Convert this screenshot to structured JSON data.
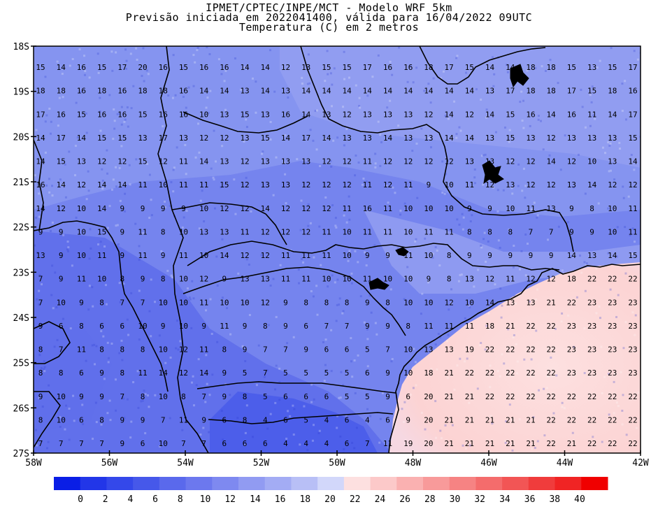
{
  "title": {
    "line1": "IPMET/CPTEC/INPE/MCT - Modelo WRF 5km",
    "line2": "Previsão iniciada em 2022041400, válida para 16/04/2022 09UTC",
    "line3": "Temperatura (C) em 2 metros"
  },
  "axes": {
    "lat_ticks": [
      "18S",
      "19S",
      "20S",
      "21S",
      "22S",
      "23S",
      "24S",
      "25S",
      "26S",
      "27S"
    ],
    "lon_ticks": [
      "58W",
      "56W",
      "54W",
      "52W",
      "50W",
      "48W",
      "46W",
      "44W",
      "42W"
    ]
  },
  "colorbar": {
    "labels": [
      "0",
      "2",
      "4",
      "6",
      "8",
      "10",
      "12",
      "14",
      "16",
      "18",
      "20",
      "22",
      "24",
      "26",
      "28",
      "30",
      "32",
      "34",
      "36",
      "38",
      "40"
    ],
    "colors": [
      "#0a1ee6",
      "#2236e8",
      "#3448ea",
      "#4658ea",
      "#5a69ec",
      "#6c78ee",
      "#7e89f0",
      "#919bf2",
      "#a3acf4",
      "#b8bff6",
      "#d2d7fa",
      "#fde0e0",
      "#fcc9c9",
      "#fab1b1",
      "#f89a9a",
      "#f68383",
      "#f46c6c",
      "#f25555",
      "#f03c3c",
      "#f02424",
      "#f00000"
    ]
  },
  "grid_values": [
    [
      "15",
      "14",
      "16",
      "15",
      "17",
      "20",
      "16",
      "15",
      "16",
      "16",
      "14",
      "14",
      "12",
      "13",
      "15",
      "15",
      "17",
      "16",
      "16",
      "18",
      "17",
      "15",
      "14",
      "14",
      "18",
      "18",
      "15",
      "13",
      "15",
      "17"
    ],
    [
      "18",
      "18",
      "16",
      "18",
      "16",
      "18",
      "18",
      "16",
      "14",
      "14",
      "13",
      "14",
      "13",
      "14",
      "14",
      "14",
      "14",
      "14",
      "14",
      "14",
      "14",
      "14",
      "13",
      "17",
      "18",
      "18",
      "17",
      "15",
      "18",
      "16"
    ],
    [
      "17",
      "16",
      "15",
      "16",
      "16",
      "15",
      "16",
      "16",
      "10",
      "13",
      "15",
      "13",
      "16",
      "14",
      "13",
      "12",
      "13",
      "13",
      "13",
      "12",
      "14",
      "12",
      "14",
      "15",
      "16",
      "14",
      "16",
      "11",
      "14",
      "17"
    ],
    [
      "14",
      "17",
      "14",
      "15",
      "15",
      "13",
      "17",
      "13",
      "12",
      "12",
      "13",
      "15",
      "14",
      "17",
      "14",
      "13",
      "13",
      "14",
      "13",
      "13",
      "14",
      "14",
      "13",
      "15",
      "13",
      "12",
      "13",
      "13",
      "13",
      "15"
    ],
    [
      "14",
      "15",
      "13",
      "12",
      "12",
      "15",
      "12",
      "11",
      "14",
      "13",
      "12",
      "13",
      "13",
      "13",
      "12",
      "12",
      "11",
      "12",
      "12",
      "12",
      "12",
      "13",
      "13",
      "12",
      "12",
      "14",
      "12",
      "10",
      "13",
      "14"
    ],
    [
      "16",
      "14",
      "12",
      "14",
      "14",
      "11",
      "10",
      "11",
      "11",
      "15",
      "12",
      "13",
      "13",
      "12",
      "12",
      "12",
      "11",
      "12",
      "11",
      "9",
      "10",
      "11",
      "12",
      "13",
      "12",
      "12",
      "13",
      "14",
      "12",
      "12"
    ],
    [
      "14",
      "12",
      "10",
      "14",
      "9",
      "9",
      "9",
      "9",
      "10",
      "12",
      "12",
      "14",
      "12",
      "12",
      "12",
      "11",
      "16",
      "11",
      "10",
      "10",
      "10",
      "9",
      "9",
      "10",
      "11",
      "13",
      "9",
      "8",
      "10",
      "11"
    ],
    [
      "9",
      "9",
      "10",
      "15",
      "9",
      "11",
      "8",
      "10",
      "13",
      "13",
      "11",
      "12",
      "12",
      "12",
      "11",
      "10",
      "11",
      "11",
      "10",
      "11",
      "11",
      "8",
      "8",
      "8",
      "7",
      "7",
      "9",
      "9",
      "10",
      "11"
    ],
    [
      "13",
      "9",
      "10",
      "11",
      "9",
      "11",
      "9",
      "11",
      "10",
      "14",
      "12",
      "12",
      "11",
      "11",
      "11",
      "10",
      "9",
      "9",
      "11",
      "10",
      "8",
      "9",
      "9",
      "9",
      "9",
      "9",
      "14",
      "13",
      "14",
      "15"
    ],
    [
      "7",
      "9",
      "11",
      "10",
      "8",
      "9",
      "8",
      "10",
      "12",
      "9",
      "13",
      "13",
      "11",
      "11",
      "10",
      "10",
      "11",
      "10",
      "10",
      "9",
      "8",
      "13",
      "12",
      "11",
      "12",
      "12",
      "18",
      "22",
      "22",
      "22"
    ],
    [
      "7",
      "10",
      "9",
      "8",
      "7",
      "7",
      "10",
      "10",
      "11",
      "10",
      "10",
      "12",
      "9",
      "8",
      "8",
      "8",
      "9",
      "8",
      "10",
      "10",
      "12",
      "10",
      "14",
      "13",
      "13",
      "21",
      "22",
      "23",
      "23",
      "23"
    ],
    [
      "9",
      "6",
      "8",
      "6",
      "6",
      "10",
      "9",
      "10",
      "9",
      "11",
      "9",
      "8",
      "9",
      "6",
      "7",
      "7",
      "9",
      "9",
      "8",
      "11",
      "11",
      "11",
      "18",
      "21",
      "22",
      "22",
      "23",
      "23",
      "23",
      "23"
    ],
    [
      "8",
      "7",
      "11",
      "8",
      "8",
      "8",
      "10",
      "12",
      "11",
      "8",
      "9",
      "7",
      "7",
      "9",
      "6",
      "6",
      "5",
      "7",
      "10",
      "13",
      "13",
      "19",
      "22",
      "22",
      "22",
      "22",
      "23",
      "23",
      "23",
      "23"
    ],
    [
      "8",
      "8",
      "6",
      "9",
      "8",
      "11",
      "14",
      "12",
      "14",
      "9",
      "5",
      "7",
      "5",
      "5",
      "5",
      "5",
      "6",
      "9",
      "10",
      "18",
      "21",
      "22",
      "22",
      "22",
      "22",
      "22",
      "23",
      "23",
      "23",
      "23"
    ],
    [
      "9",
      "10",
      "9",
      "9",
      "7",
      "8",
      "10",
      "8",
      "7",
      "9",
      "8",
      "5",
      "6",
      "6",
      "6",
      "5",
      "5",
      "9",
      "6",
      "20",
      "21",
      "21",
      "22",
      "22",
      "22",
      "22",
      "22",
      "22",
      "22",
      "22"
    ],
    [
      "8",
      "10",
      "6",
      "8",
      "9",
      "9",
      "7",
      "11",
      "9",
      "6",
      "8",
      "4",
      "6",
      "5",
      "4",
      "6",
      "4",
      "6",
      "9",
      "20",
      "21",
      "21",
      "21",
      "21",
      "21",
      "22",
      "22",
      "22",
      "22",
      "22"
    ],
    [
      "7",
      "7",
      "7",
      "7",
      "9",
      "6",
      "10",
      "7",
      "7",
      "6",
      "6",
      "6",
      "4",
      "4",
      "4",
      "6",
      "7",
      "11",
      "19",
      "20",
      "21",
      "21",
      "21",
      "21",
      "21",
      "22",
      "21",
      "22",
      "22",
      "22"
    ]
  ]
}
